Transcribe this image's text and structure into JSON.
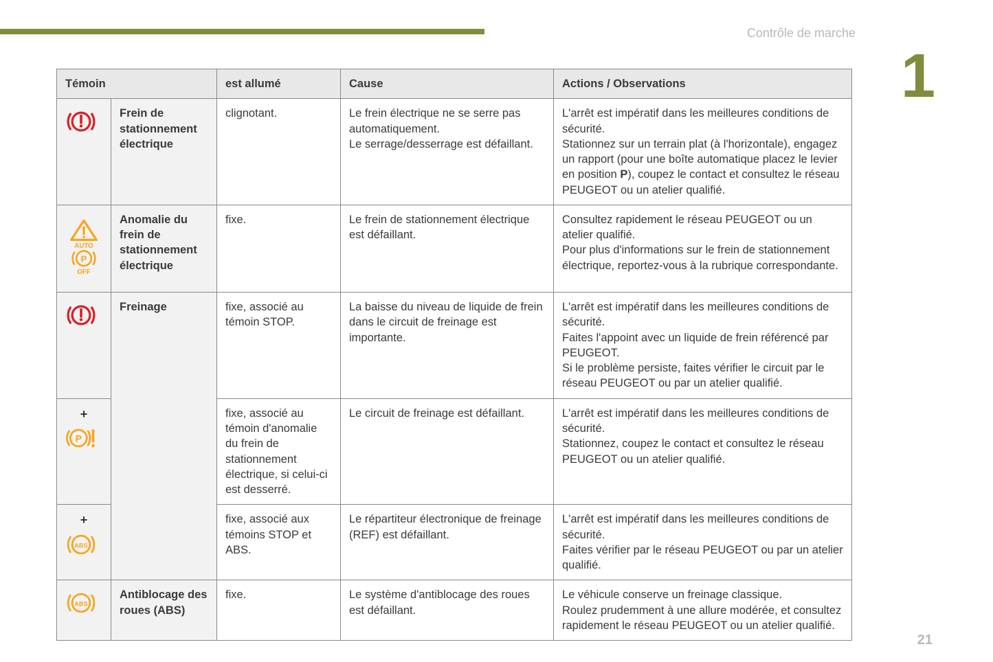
{
  "header": {
    "section_title": "Contrôle de marche",
    "chapter_number": "1",
    "page_number": "21"
  },
  "colors": {
    "accent": "#828c3d",
    "header_grey": "#b8b8b8",
    "red": "#d92027",
    "orange": "#f7a51e",
    "table_border": "#888888",
    "table_header_bg": "#e8e8e8",
    "label_bg": "#f2f2f2",
    "text": "#3a3a3a"
  },
  "table": {
    "type": "table",
    "headers": {
      "col1": "Témoin",
      "col2": "est allumé",
      "col3": "Cause",
      "col4": "Actions / Observations"
    },
    "rows": [
      {
        "label": "Frein de stationnement électrique",
        "icon": "brake-warning-red",
        "state": "clignotant.",
        "cause": "Le frein électrique ne se serre pas automatiquement.\nLe serrage/desserrage est défaillant.",
        "action_pre": "L'arrêt est impératif dans les meilleures conditions de sécurité.\nStationnez sur un terrain plat (à l'horizontale), engagez un rapport (pour une boîte automatique placez le levier en position ",
        "action_bold": "P",
        "action_post": "), coupez le contact et consultez le réseau PEUGEOT ou un atelier qualifié."
      },
      {
        "label": "Anomalie du frein de stationnement électrique",
        "icon": "auto-p-off-orange",
        "state": "fixe.",
        "cause": "Le frein de stationnement électrique est défaillant.",
        "action": "Consultez rapidement le réseau PEUGEOT ou un atelier qualifié.\nPour plus d'informations sur le frein de stationnement électrique, reportez-vous à la rubrique correspondante."
      },
      {
        "label": "Freinage",
        "icon": "brake-warning-red",
        "state": "fixe, associé au témoin STOP.",
        "cause": "La baisse du niveau de liquide de frein dans le circuit de freinage est importante.",
        "action": "L'arrêt est impératif dans les meilleures conditions de sécurité.\nFaites l'appoint avec un liquide de frein référencé par PEUGEOT.\nSi le problème persiste, faites vérifier le circuit par le réseau PEUGEOT ou par un atelier qualifié."
      },
      {
        "plus": "+",
        "icon": "p-exclaim-orange",
        "state": "fixe, associé au témoin d'anomalie du frein de stationnement électrique, si celui-ci est desserré.",
        "cause": "Le circuit de freinage est défaillant.",
        "action": "L'arrêt est impératif dans les meilleures conditions de sécurité.\nStationnez, coupez le contact et consultez le réseau PEUGEOT ou un atelier qualifié."
      },
      {
        "plus": "+",
        "icon": "abs-orange",
        "state": "fixe, associé aux témoins STOP et ABS.",
        "cause": "Le répartiteur électronique de freinage (REF) est défaillant.",
        "action": "L'arrêt est impératif dans les meilleures conditions de sécurité.\nFaites vérifier par le réseau PEUGEOT ou par un atelier qualifié."
      },
      {
        "label": "Antiblocage des roues (ABS)",
        "icon": "abs-orange",
        "state": "fixe.",
        "cause": "Le système d'antiblocage des roues est défaillant.",
        "action": "Le véhicule conserve un freinage classique.\nRoulez prudemment à une allure modérée, et consultez rapidement le réseau PEUGEOT ou un atelier qualifié."
      }
    ]
  }
}
